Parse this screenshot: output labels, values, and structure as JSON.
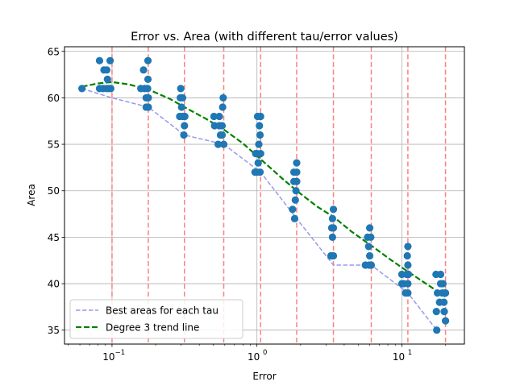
{
  "chart_data": {
    "type": "scatter",
    "title": "Error vs. Area (with different tau/error values)",
    "xlabel": "Error",
    "ylabel": "Area",
    "xscale": "log",
    "xlim": [
      0.047,
      27
    ],
    "ylim": [
      33.5,
      65.5
    ],
    "grid": true,
    "legend_position": "lower-left",
    "x_ticks": [
      {
        "value": 0.1,
        "base": "10",
        "exp": "−1"
      },
      {
        "value": 1,
        "base": "10",
        "exp": "0"
      },
      {
        "value": 10,
        "base": "10",
        "exp": "1"
      }
    ],
    "y_ticks": [
      35,
      40,
      45,
      50,
      55,
      60,
      65
    ],
    "vlines": [
      0.1,
      0.178,
      0.316,
      0.59,
      1.06,
      1.88,
      3.37,
      6.15,
      11.0,
      20.0
    ],
    "points": [
      {
        "x": 0.062,
        "y": 61
      },
      {
        "x": 0.082,
        "y": 61
      },
      {
        "x": 0.082,
        "y": 64
      },
      {
        "x": 0.087,
        "y": 61
      },
      {
        "x": 0.088,
        "y": 63
      },
      {
        "x": 0.092,
        "y": 61
      },
      {
        "x": 0.092,
        "y": 63
      },
      {
        "x": 0.093,
        "y": 62
      },
      {
        "x": 0.095,
        "y": 61
      },
      {
        "x": 0.097,
        "y": 64
      },
      {
        "x": 0.098,
        "y": 61
      },
      {
        "x": 0.158,
        "y": 61
      },
      {
        "x": 0.165,
        "y": 63
      },
      {
        "x": 0.168,
        "y": 61
      },
      {
        "x": 0.172,
        "y": 59
      },
      {
        "x": 0.172,
        "y": 60
      },
      {
        "x": 0.176,
        "y": 61
      },
      {
        "x": 0.177,
        "y": 64
      },
      {
        "x": 0.177,
        "y": 62
      },
      {
        "x": 0.178,
        "y": 59
      },
      {
        "x": 0.178,
        "y": 60
      },
      {
        "x": 0.293,
        "y": 58
      },
      {
        "x": 0.296,
        "y": 60
      },
      {
        "x": 0.298,
        "y": 61
      },
      {
        "x": 0.302,
        "y": 59
      },
      {
        "x": 0.307,
        "y": 60
      },
      {
        "x": 0.308,
        "y": 58
      },
      {
        "x": 0.313,
        "y": 56
      },
      {
        "x": 0.316,
        "y": 57
      },
      {
        "x": 0.318,
        "y": 58
      },
      {
        "x": 0.505,
        "y": 58
      },
      {
        "x": 0.51,
        "y": 57
      },
      {
        "x": 0.54,
        "y": 55
      },
      {
        "x": 0.55,
        "y": 57
      },
      {
        "x": 0.55,
        "y": 58
      },
      {
        "x": 0.56,
        "y": 56
      },
      {
        "x": 0.575,
        "y": 56
      },
      {
        "x": 0.575,
        "y": 57
      },
      {
        "x": 0.58,
        "y": 59
      },
      {
        "x": 0.585,
        "y": 60
      },
      {
        "x": 0.59,
        "y": 55
      },
      {
        "x": 0.97,
        "y": 52
      },
      {
        "x": 0.98,
        "y": 54
      },
      {
        "x": 1.0,
        "y": 52
      },
      {
        "x": 1.0,
        "y": 54
      },
      {
        "x": 1.02,
        "y": 53
      },
      {
        "x": 1.03,
        "y": 55
      },
      {
        "x": 1.04,
        "y": 57
      },
      {
        "x": 1.05,
        "y": 52
      },
      {
        "x": 1.05,
        "y": 56
      },
      {
        "x": 1.06,
        "y": 58
      },
      {
        "x": 1.01,
        "y": 58
      },
      {
        "x": 1.06,
        "y": 54
      },
      {
        "x": 1.76,
        "y": 48
      },
      {
        "x": 1.8,
        "y": 51
      },
      {
        "x": 1.8,
        "y": 52
      },
      {
        "x": 1.82,
        "y": 47
      },
      {
        "x": 1.84,
        "y": 49
      },
      {
        "x": 1.86,
        "y": 50
      },
      {
        "x": 1.88,
        "y": 51
      },
      {
        "x": 1.88,
        "y": 52
      },
      {
        "x": 1.88,
        "y": 53
      },
      {
        "x": 3.24,
        "y": 43
      },
      {
        "x": 3.28,
        "y": 46
      },
      {
        "x": 3.32,
        "y": 45
      },
      {
        "x": 3.32,
        "y": 47
      },
      {
        "x": 3.37,
        "y": 48
      },
      {
        "x": 3.37,
        "y": 43
      },
      {
        "x": 3.37,
        "y": 46
      },
      {
        "x": 5.6,
        "y": 42
      },
      {
        "x": 5.8,
        "y": 45
      },
      {
        "x": 5.9,
        "y": 44
      },
      {
        "x": 5.95,
        "y": 42
      },
      {
        "x": 6.0,
        "y": 43
      },
      {
        "x": 6.0,
        "y": 46
      },
      {
        "x": 6.1,
        "y": 45
      },
      {
        "x": 6.15,
        "y": 42
      },
      {
        "x": 10.0,
        "y": 40
      },
      {
        "x": 10.0,
        "y": 41
      },
      {
        "x": 10.3,
        "y": 40
      },
      {
        "x": 10.6,
        "y": 39
      },
      {
        "x": 10.8,
        "y": 41
      },
      {
        "x": 10.9,
        "y": 43
      },
      {
        "x": 11.0,
        "y": 42
      },
      {
        "x": 11.0,
        "y": 44
      },
      {
        "x": 11.0,
        "y": 39
      },
      {
        "x": 11.0,
        "y": 40
      },
      {
        "x": 11.1,
        "y": 41
      },
      {
        "x": 17.2,
        "y": 41
      },
      {
        "x": 17.3,
        "y": 37
      },
      {
        "x": 17.4,
        "y": 35
      },
      {
        "x": 17.6,
        "y": 39
      },
      {
        "x": 18.2,
        "y": 38
      },
      {
        "x": 18.5,
        "y": 40
      },
      {
        "x": 18.5,
        "y": 41
      },
      {
        "x": 19.0,
        "y": 39
      },
      {
        "x": 19.2,
        "y": 40
      },
      {
        "x": 19.5,
        "y": 38
      },
      {
        "x": 19.6,
        "y": 37
      },
      {
        "x": 20.0,
        "y": 36
      },
      {
        "x": 20.0,
        "y": 39
      },
      {
        "x": 19.8,
        "y": 39
      }
    ],
    "series": [
      {
        "name": "Best areas for each tau",
        "style": "dashed",
        "color": "#9999ee",
        "points": [
          {
            "x": 0.062,
            "y": 61
          },
          {
            "x": 0.1,
            "y": 60
          },
          {
            "x": 0.178,
            "y": 59
          },
          {
            "x": 0.316,
            "y": 56
          },
          {
            "x": 0.59,
            "y": 55
          },
          {
            "x": 1.06,
            "y": 52
          },
          {
            "x": 1.88,
            "y": 47
          },
          {
            "x": 3.37,
            "y": 42
          },
          {
            "x": 6.15,
            "y": 42
          },
          {
            "x": 11.0,
            "y": 39
          },
          {
            "x": 17.4,
            "y": 35
          }
        ]
      },
      {
        "name": "Degree 3 trend line",
        "style": "dashed",
        "color": "#008000",
        "points": [
          {
            "x": 0.062,
            "y": 61.2
          },
          {
            "x": 0.08,
            "y": 61.55
          },
          {
            "x": 0.1,
            "y": 61.7
          },
          {
            "x": 0.13,
            "y": 61.45
          },
          {
            "x": 0.178,
            "y": 60.9
          },
          {
            "x": 0.25,
            "y": 59.9
          },
          {
            "x": 0.316,
            "y": 59.0
          },
          {
            "x": 0.45,
            "y": 57.7
          },
          {
            "x": 0.59,
            "y": 56.6
          },
          {
            "x": 0.8,
            "y": 55.1
          },
          {
            "x": 1.06,
            "y": 53.4
          },
          {
            "x": 1.5,
            "y": 51.3
          },
          {
            "x": 1.88,
            "y": 50.0
          },
          {
            "x": 2.6,
            "y": 48.3
          },
          {
            "x": 3.37,
            "y": 47.2
          },
          {
            "x": 4.5,
            "y": 45.6
          },
          {
            "x": 6.15,
            "y": 44.1
          },
          {
            "x": 8.5,
            "y": 42.5
          },
          {
            "x": 11.0,
            "y": 41.3
          },
          {
            "x": 15.0,
            "y": 39.9
          },
          {
            "x": 20.0,
            "y": 38.6
          }
        ]
      }
    ],
    "colors": {
      "points": "#1f77b4",
      "vlines": "#ff8080",
      "grid": "#b0b0b0"
    }
  }
}
